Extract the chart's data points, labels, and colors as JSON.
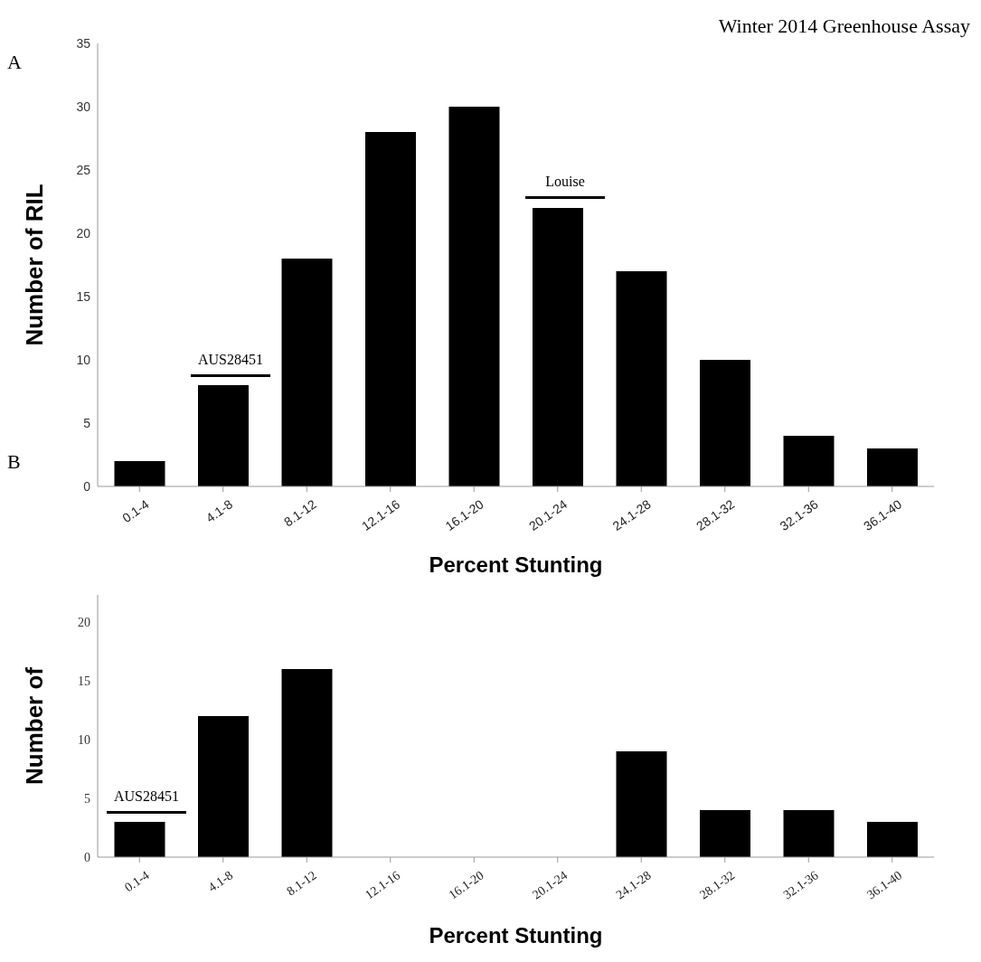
{
  "chart_data": [
    {
      "type": "bar",
      "title": "Winter 2014 Greenhouse Assay",
      "categories": [
        "0.1-4",
        "4.1-8",
        "8.1-12",
        "12.1-16",
        "16.1-20",
        "20.1-24",
        "24.1-28",
        "28.1-32",
        "32.1-36",
        "36.1-40"
      ],
      "values": [
        2,
        8,
        18,
        28,
        30,
        22,
        17,
        10,
        4,
        3
      ],
      "color": "#000000",
      "xlabel": "Percent Stunting",
      "ylabel": "Number of RIL",
      "ylim": [
        0,
        35
      ],
      "yticks": [
        0,
        5,
        10,
        15,
        20,
        25,
        30,
        35
      ],
      "grid": false,
      "annotations": [
        "A",
        "AUS28451",
        "Louise"
      ]
    },
    {
      "type": "bar",
      "categories": [
        "0.1-4",
        "4.1-8",
        "8.1-12",
        "12.1-16",
        "16.1-20",
        "20.1-24",
        "24.1-28",
        "28.1-32",
        "32.1-36",
        "36.1-40"
      ],
      "values": [
        3,
        12,
        16,
        null,
        null,
        null,
        9,
        4,
        4,
        3
      ],
      "color": "#000000",
      "xlabel": "Percent Stunting",
      "ylabel": "Number of",
      "ylim": [
        0,
        22.3
      ],
      "yticks": [
        0,
        5,
        10,
        15,
        20
      ],
      "grid": false,
      "annotations": [
        "B",
        "AUS28451"
      ]
    }
  ]
}
